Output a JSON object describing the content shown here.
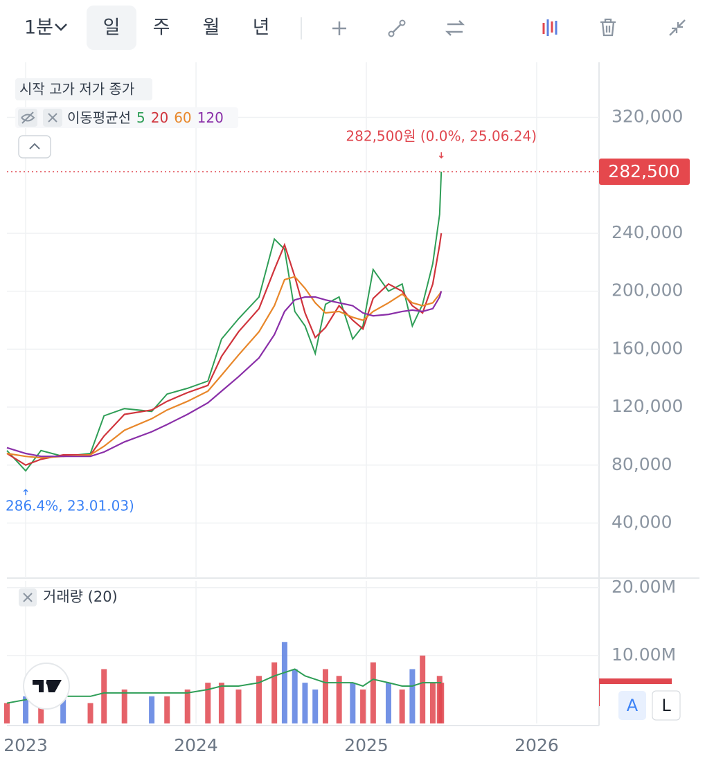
{
  "toolbar": {
    "interval": "1분",
    "periods": [
      "일",
      "주",
      "월",
      "년"
    ]
  },
  "chart_data": [
    {
      "type": "line",
      "ohlc_label": "시작 고가 저가 종가",
      "legend_title": "이동평균선",
      "x": [
        2022.89,
        2023.0,
        2023.09,
        2023.22,
        2023.38,
        2023.46,
        2023.58,
        2023.74,
        2023.83,
        2023.95,
        2024.07,
        2024.15,
        2024.25,
        2024.37,
        2024.46,
        2024.52,
        2024.58,
        2024.64,
        2024.7,
        2024.76,
        2024.84,
        2024.92,
        2024.98,
        2025.04,
        2025.13,
        2025.21,
        2025.27,
        2025.33,
        2025.39,
        2025.43,
        2025.44
      ],
      "series": [
        {
          "name": "5",
          "color": "#2f9e57",
          "values": [
            90000,
            76000,
            90000,
            86000,
            88000,
            114000,
            119000,
            117000,
            129000,
            133000,
            138000,
            167000,
            181000,
            196000,
            236000,
            229000,
            186000,
            176000,
            157000,
            191000,
            196000,
            167000,
            176000,
            215000,
            200000,
            205000,
            176000,
            191000,
            219000,
            253000,
            282500
          ]
        },
        {
          "name": "20",
          "color": "#d0343c",
          "values": [
            88000,
            80000,
            84000,
            87000,
            87000,
            100000,
            115000,
            118000,
            124000,
            130000,
            135000,
            155000,
            172000,
            188000,
            215000,
            232000,
            210000,
            185000,
            168000,
            175000,
            190000,
            180000,
            174000,
            195000,
            205000,
            200000,
            190000,
            185000,
            205000,
            232000,
            240000
          ]
        },
        {
          "name": "60",
          "color": "#e8872a",
          "values": [
            88000,
            86000,
            85000,
            86000,
            87000,
            93000,
            104000,
            112000,
            118000,
            124000,
            131000,
            142000,
            156000,
            172000,
            190000,
            208000,
            210000,
            202000,
            192000,
            185000,
            186000,
            182000,
            180000,
            186000,
            192000,
            198000,
            192000,
            190000,
            192000,
            198000,
            200000
          ]
        },
        {
          "name": "120",
          "color": "#8a2fa8",
          "values": [
            92000,
            88000,
            86000,
            86000,
            86000,
            89000,
            96000,
            103000,
            108000,
            115000,
            123000,
            131000,
            141000,
            154000,
            170000,
            186000,
            194000,
            196000,
            196000,
            194000,
            192000,
            190000,
            185000,
            183000,
            184000,
            186000,
            187000,
            186000,
            188000,
            196000,
            200000
          ]
        }
      ],
      "xlim": [
        2022.89,
        2026.366
      ],
      "xticks": [
        2023,
        2024,
        2025,
        2026
      ],
      "ylim": [
        2000,
        358000
      ],
      "yticks": [
        {
          "value": 40000,
          "label": "40,000"
        },
        {
          "value": 80000,
          "label": "80,000"
        },
        {
          "value": 120000,
          "label": "120,000"
        },
        {
          "value": 160000,
          "label": "160,000"
        },
        {
          "value": 200000,
          "label": "200,000"
        },
        {
          "value": 240000,
          "label": "240,000"
        },
        {
          "value": 320000,
          "label": "320,000"
        }
      ],
      "grid": true,
      "last_price": {
        "value": 282500,
        "label": "282,500"
      },
      "high_label": "282,500원 (0.0%, 25.06.24)",
      "low_label": "286.4%, 23.01.03)"
    },
    {
      "type": "bar",
      "title": "거래량 (20)",
      "x": [
        2022.89,
        2023.0,
        2023.09,
        2023.22,
        2023.38,
        2023.46,
        2023.58,
        2023.74,
        2023.83,
        2023.95,
        2024.07,
        2024.15,
        2024.25,
        2024.37,
        2024.46,
        2024.52,
        2024.58,
        2024.64,
        2024.7,
        2024.76,
        2024.84,
        2024.92,
        2024.98,
        2025.04,
        2025.13,
        2025.21,
        2025.27,
        2025.33,
        2025.39,
        2025.43,
        2025.44
      ],
      "values": [
        3000000,
        4000000,
        5000000,
        4000000,
        3000000,
        8000000,
        5000000,
        4000000,
        4000000,
        5000000,
        6000000,
        6000000,
        5000000,
        7000000,
        9000000,
        12000000,
        8000000,
        6000000,
        5000000,
        8000000,
        7000000,
        6000000,
        5000000,
        9000000,
        6000000,
        5000000,
        8000000,
        10000000,
        6000000,
        7000000,
        6000000
      ],
      "up_color": "#e0474f",
      "down_color": "#5b7fe0",
      "ma": {
        "color": "#2f9e57",
        "values": [
          3000000,
          3500000,
          4000000,
          4000000,
          4000000,
          4500000,
          4500000,
          4500000,
          4500000,
          4500000,
          5000000,
          5500000,
          5500000,
          6000000,
          7000000,
          7500000,
          8000000,
          7000000,
          6500000,
          6000000,
          6000000,
          6000000,
          5500000,
          6500000,
          6000000,
          5500000,
          5500000,
          6000000,
          6000000,
          6000000,
          6000000
        ]
      },
      "xlim": [
        2022.89,
        2026.366
      ],
      "xticks": [
        2023,
        2024,
        2025,
        2026
      ],
      "ylim": [
        0,
        21000000
      ],
      "yticks": [
        {
          "value": 10000000,
          "label": "10.00M"
        },
        {
          "value": 20000000,
          "label": "20.00M"
        }
      ],
      "grid": true,
      "scale_buttons": [
        "A",
        "L"
      ]
    }
  ]
}
